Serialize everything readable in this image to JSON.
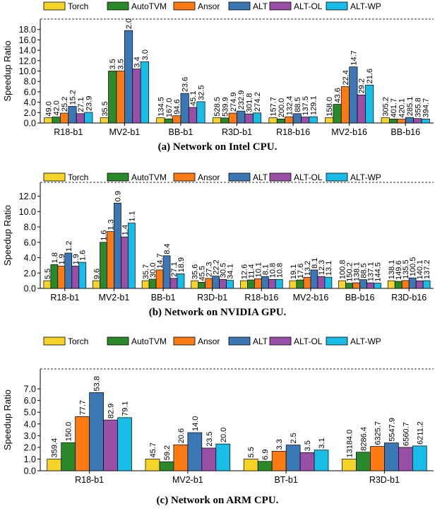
{
  "colors": {
    "Torch": "#f5d327",
    "AutoTVM": "#2a8a2a",
    "Ansor": "#fb7a13",
    "ALT": "#3a77b4",
    "ALT-OL": "#9a4fa6",
    "ALT-WP": "#17bde6"
  },
  "legend": [
    "Torch",
    "AutoTVM",
    "Ansor",
    "ALT",
    "ALT-OL",
    "ALT-WP"
  ],
  "chart_data": [
    {
      "type": "bar",
      "title": "(a) Network on Intel CPU.",
      "ylabel": "Speedup Ratio",
      "ylim": [
        0,
        20
      ],
      "yticks": [
        0.0,
        2.0,
        4.0,
        6.0,
        8.0,
        10.0,
        12.0,
        14.0,
        16.0,
        18.0
      ],
      "ytick_labels": [
        "0.0",
        "2.0",
        "4.0",
        "6.0",
        "8.0",
        "10.0",
        "12.0",
        "14.0",
        "16.0",
        "18.0"
      ],
      "categories": [
        "R18-b1",
        "MV2-b1",
        "BB-b1",
        "R3D-b1",
        "R18-b16",
        "MV2-b16",
        "BB-b16"
      ],
      "series": [
        {
          "name": "Torch",
          "values": [
            1.0,
            1.0,
            1.0,
            1.0,
            1.0,
            1.0,
            1.0
          ],
          "labels": [
            "49.0",
            "35.5",
            "134.5",
            "528.5",
            "157.7",
            "158.0",
            "305.2"
          ]
        },
        {
          "name": "AutoTVM",
          "values": [
            1.15,
            10.0,
            0.8,
            0.97,
            0.78,
            3.6,
            0.76
          ],
          "labels": [
            "42.0",
            "3.5",
            "167.0",
            "539.9",
            "200.0",
            "43.6",
            "401.7"
          ]
        },
        {
          "name": "Ansor",
          "values": [
            1.9,
            10.0,
            1.4,
            1.9,
            1.2,
            7.0,
            0.73
          ],
          "labels": [
            "25.2",
            "3.5",
            "94.6",
            "274.9",
            "132.4",
            "22.4",
            "420.1"
          ]
        },
        {
          "name": "ALT",
          "values": [
            3.2,
            17.8,
            5.7,
            2.3,
            1.8,
            10.8,
            1.07
          ],
          "labels": [
            "15.2",
            "2.0",
            "23.6",
            "232.9",
            "88.5",
            "14.7",
            "285.1"
          ]
        },
        {
          "name": "ALT-OL",
          "values": [
            1.8,
            10.4,
            3.0,
            1.75,
            1.15,
            5.4,
            0.86
          ],
          "labels": [
            "27.1",
            "3.4",
            "45.1",
            "301.8",
            "137.5",
            "29.2",
            "355.8"
          ]
        },
        {
          "name": "ALT-WP",
          "values": [
            2.05,
            11.8,
            4.1,
            1.93,
            1.22,
            7.3,
            0.77
          ],
          "labels": [
            "23.9",
            "3.0",
            "32.5",
            "274.2",
            "129.1",
            "21.6",
            "394.7"
          ]
        }
      ]
    },
    {
      "type": "bar",
      "title": "(b) Network on NVIDIA GPU.",
      "ylabel": "Speedup Ratio",
      "ylim": [
        0,
        13.8
      ],
      "yticks": [
        0.0,
        2.0,
        4.0,
        6.0,
        8.0,
        10.0,
        12.0
      ],
      "ytick_labels": [
        "0.0",
        "2.0",
        "4.0",
        "6.0",
        "8.0",
        "10.0",
        "12.0"
      ],
      "categories": [
        "R18-b1",
        "MV2-b1",
        "BB-b1",
        "R3D-b1",
        "R18-b16",
        "MV2-b16",
        "BB-b16",
        "R3D-b16"
      ],
      "series": [
        {
          "name": "Torch",
          "values": [
            1.0,
            1.0,
            1.0,
            1.0,
            1.0,
            1.0,
            1.0,
            1.0
          ],
          "labels": [
            "5.5",
            "9.6",
            "35.7",
            "35.6",
            "12.6",
            "19.1",
            "100.8",
            "138.1"
          ]
        },
        {
          "name": "AutoTVM",
          "values": [
            3.1,
            6.0,
            1.2,
            0.79,
            1.1,
            1.1,
            0.67,
            0.92
          ],
          "labels": [
            "1.8",
            "1.6",
            "30.0",
            "45.5",
            "11.4",
            "17.6",
            "150.2",
            "149.6"
          ]
        },
        {
          "name": "Ansor",
          "values": [
            2.9,
            7.4,
            2.4,
            1.3,
            1.25,
            1.45,
            0.73,
            1.02
          ],
          "labels": [
            "1.9",
            "1.3",
            "14.7",
            "27.3",
            "10.1",
            "13.2",
            "138.1",
            "135.5"
          ]
        },
        {
          "name": "ALT",
          "values": [
            4.6,
            11.1,
            4.25,
            1.6,
            1.55,
            2.4,
            1.14,
            1.37
          ],
          "labels": [
            "1.2",
            "0.9",
            "8.4",
            "22.2",
            "8.1",
            "8.1",
            "88.5",
            "100.5"
          ]
        },
        {
          "name": "ALT-OL",
          "values": [
            2.9,
            6.7,
            1.31,
            1.17,
            1.17,
            1.55,
            0.73,
            0.98
          ],
          "labels": [
            "1.9",
            "1.4",
            "27.1",
            "30.5",
            "10.8",
            "12.3",
            "137.1",
            "140.1"
          ]
        },
        {
          "name": "ALT-WP",
          "values": [
            3.4,
            8.5,
            1.9,
            1.04,
            1.17,
            1.46,
            0.68,
            1.01
          ],
          "labels": [
            "1.6",
            "1.1",
            "18.9",
            "34.1",
            "10.8",
            "13.1",
            "144.5",
            "137.2"
          ]
        }
      ]
    },
    {
      "type": "bar",
      "title": "(c) Network on ARM CPU.",
      "ylabel": "Speedup Ratio",
      "ylim": [
        0,
        8.7
      ],
      "yticks": [
        0.0,
        1.0,
        2.0,
        3.0,
        4.0,
        5.0,
        6.0,
        7.0
      ],
      "ytick_labels": [
        "0.0",
        "1.0",
        "2.0",
        "3.0",
        "4.0",
        "5.0",
        "6.0",
        "7.0"
      ],
      "categories": [
        "R18-b1",
        "MV2-b1",
        "BT-b1",
        "R3D-b1"
      ],
      "series": [
        {
          "name": "Torch",
          "values": [
            1.0,
            1.0,
            1.0,
            1.0
          ],
          "labels": [
            "359.4",
            "45.7",
            "5.5",
            "13184.0"
          ]
        },
        {
          "name": "AutoTVM",
          "values": [
            2.4,
            0.77,
            0.8,
            1.59
          ],
          "labels": [
            "150.0",
            "59.2",
            "6.9",
            "8286.4"
          ]
        },
        {
          "name": "Ansor",
          "values": [
            4.63,
            2.22,
            1.67,
            2.08
          ],
          "labels": [
            "77.7",
            "20.6",
            "3.3",
            "6325.7"
          ]
        },
        {
          "name": "ALT",
          "values": [
            6.68,
            3.26,
            2.2,
            2.38
          ],
          "labels": [
            "53.8",
            "14.0",
            "2.5",
            "5547.9"
          ]
        },
        {
          "name": "ALT-OL",
          "values": [
            4.34,
            1.94,
            1.55,
            2.0
          ],
          "labels": [
            "82.9",
            "23.5",
            "3.5",
            "6560.7"
          ]
        },
        {
          "name": "ALT-WP",
          "values": [
            4.54,
            2.29,
            1.77,
            2.12
          ],
          "labels": [
            "79.1",
            "20.0",
            "3.1",
            "6211.2"
          ]
        }
      ]
    }
  ]
}
